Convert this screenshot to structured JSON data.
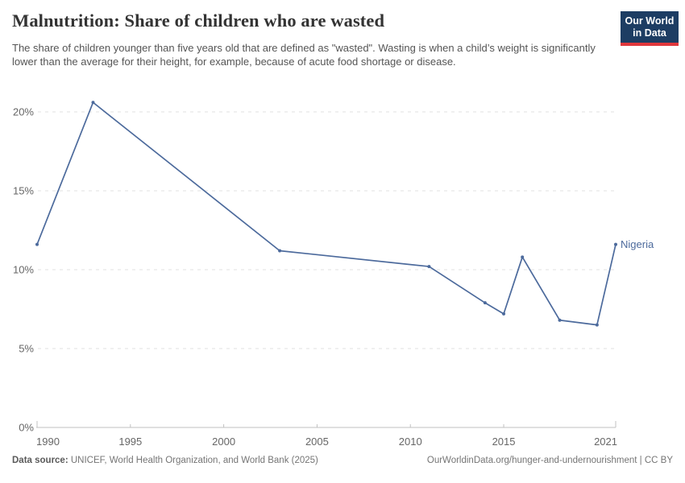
{
  "header": {
    "title": "Malnutrition: Share of children who are wasted",
    "subtitle": "The share of children younger than five years old that are defined as \"wasted\". Wasting is when a child’s weight is significantly lower than the average for their height, for example, because of acute food shortage or disease.",
    "logo": {
      "line1": "Our World",
      "line2": "in Data"
    }
  },
  "chart_data": {
    "type": "line",
    "title": "Malnutrition: Share of children who are wasted",
    "entity": "Nigeria",
    "unit": "%",
    "x": [
      1990,
      1993,
      2003,
      2011,
      2014,
      2015,
      2016,
      2018,
      2020,
      2021
    ],
    "series": [
      {
        "name": "Nigeria",
        "values": [
          11.6,
          20.6,
          11.2,
          10.2,
          7.9,
          7.2,
          10.8,
          6.8,
          6.5,
          11.6
        ],
        "color": "#4c6a9c"
      }
    ],
    "xlabel": "",
    "ylabel": "",
    "xlim": [
      1990,
      2021
    ],
    "ylim": [
      0,
      21
    ],
    "xticks": [
      1990,
      1995,
      2000,
      2005,
      2010,
      2015,
      2021
    ],
    "yticks": [
      0,
      5,
      10,
      15,
      20
    ],
    "ytick_suffix": "%",
    "grid": "horizontal-dashed",
    "legend_position": "end-of-line-label"
  },
  "footer": {
    "datasource_label": "Data source:",
    "datasource_text": " UNICEF, World Health Organization, and World Bank (2025)",
    "link": "OurWorldinData.org/hunger-and-undernourishment | CC BY"
  },
  "colors": {
    "line": "#4c6a9c",
    "grid": "#e2e2e2",
    "axis": "#c0c0c0",
    "tick_label": "#666666",
    "title": "#333333",
    "subtitle": "#555555",
    "footer": "#757575",
    "logo_bg": "#1d3d63",
    "logo_stripe": "#e0373c"
  }
}
